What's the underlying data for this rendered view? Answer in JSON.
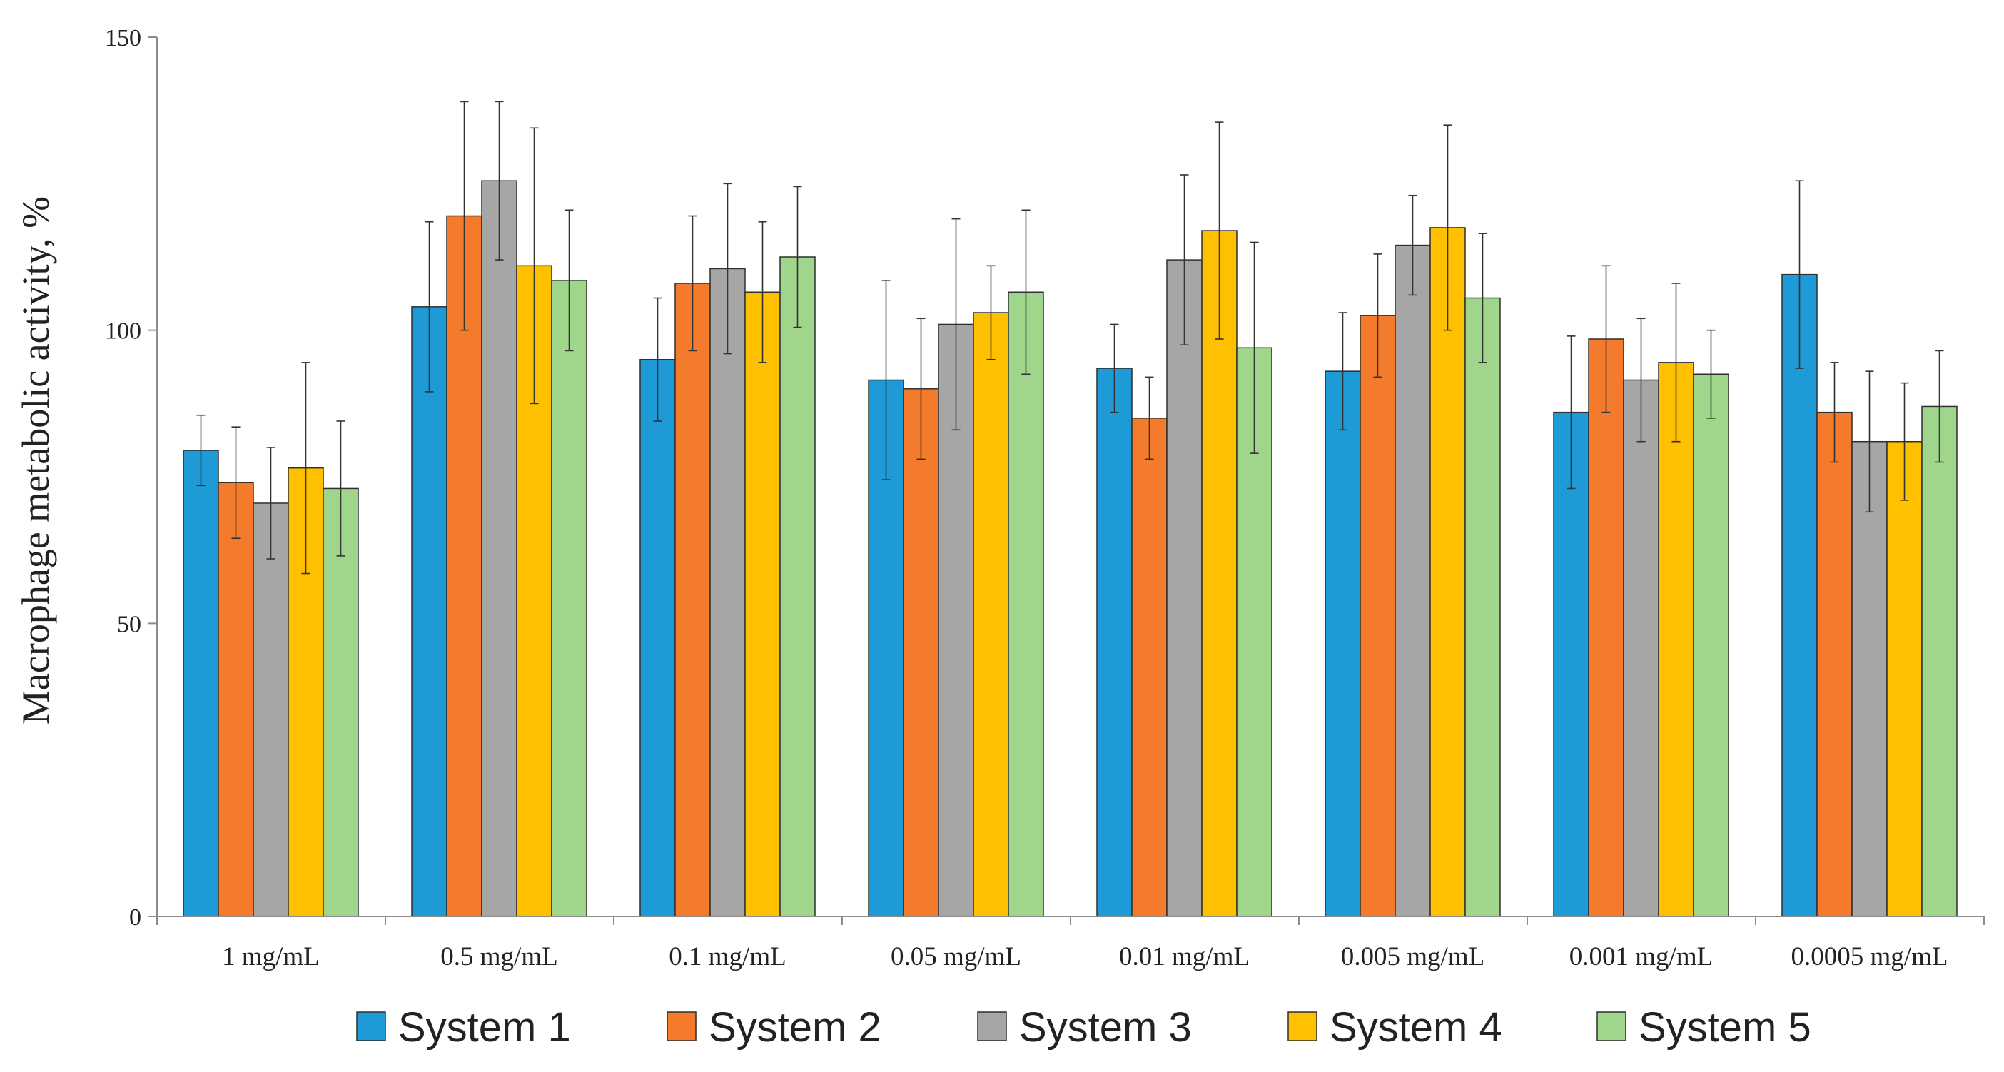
{
  "chart_data": {
    "type": "bar",
    "title": "",
    "xlabel": "",
    "ylabel": "Macrophage metabolic activity, %",
    "ylim": [
      0,
      150
    ],
    "yticks": [
      "0",
      "50",
      "100",
      "150"
    ],
    "grid": false,
    "legend_position": "bottom",
    "categories": [
      "1 mg/mL",
      "0.5 mg/mL",
      "0.1 mg/mL",
      "0.05 mg/mL",
      "0.01 mg/mL",
      "0.005 mg/mL",
      "0.001 mg/mL",
      "0.0005 mg/mL"
    ],
    "series": [
      {
        "name": "System 1",
        "color": "#1e9ad6",
        "values": [
          79.5,
          104,
          95,
          91.5,
          93.5,
          93,
          86,
          109.5
        ],
        "errors": [
          6,
          14.5,
          10.5,
          17,
          7.5,
          10,
          13,
          16
        ]
      },
      {
        "name": "System 2",
        "color": "#f47a2c",
        "values": [
          74,
          119.5,
          108,
          90,
          85,
          102.5,
          98.5,
          86
        ],
        "errors": [
          9.5,
          19.5,
          11.5,
          12,
          7,
          10.5,
          12.5,
          8.5
        ]
      },
      {
        "name": "System 3",
        "color": "#a6a6a6",
        "values": [
          70.5,
          125.5,
          110.5,
          101,
          112,
          114.5,
          91.5,
          81
        ],
        "errors": [
          9.5,
          13.5,
          14.5,
          18,
          14.5,
          8.5,
          10.5,
          12
        ]
      },
      {
        "name": "System 4",
        "color": "#ffc000",
        "values": [
          76.5,
          111,
          106.5,
          103,
          117,
          117.5,
          94.5,
          81
        ],
        "errors": [
          18,
          23.5,
          12,
          8,
          18.5,
          17.5,
          13.5,
          10
        ]
      },
      {
        "name": "System 5",
        "color": "#9fd68c",
        "values": [
          73,
          108.5,
          112.5,
          106.5,
          97,
          105.5,
          92.5,
          87
        ],
        "errors": [
          11.5,
          12,
          12,
          14,
          18,
          11,
          7.5,
          9.5
        ]
      }
    ]
  }
}
